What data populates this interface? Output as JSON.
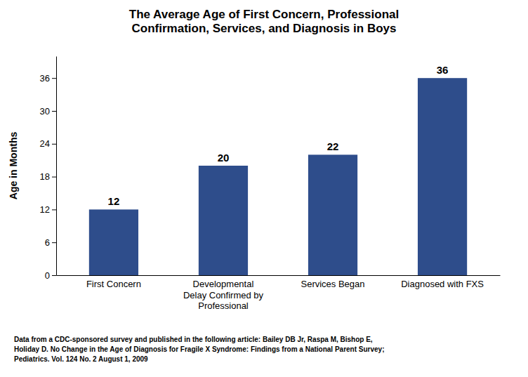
{
  "chart_data": {
    "type": "bar",
    "title": "The Average Age of First Concern, Professional\nConfirmation, Services, and Diagnosis in Boys",
    "categories": [
      "First Concern",
      "Developmental\nDelay Confirmed by\nProfessional",
      "Services Began",
      "Diagnosed with FXS"
    ],
    "values": [
      12,
      20,
      22,
      36
    ],
    "color": "#2E4D8B",
    "ylabel": "Age in Months",
    "ylim": [
      0,
      40
    ],
    "yticks": [
      0,
      6,
      12,
      18,
      24,
      30,
      36
    ],
    "grid": false,
    "data_labels": true,
    "footnote": "Data from a CDC-sponsored survey and published in the following article: Bailey DB Jr, Raspa M, Bishop E,\nHoliday D. No Change in the Age of Diagnosis for Fragile X Syndrome: Findings from a National Parent Survey;\nPediatrics. Vol. 124 No. 2 August 1, 2009"
  }
}
